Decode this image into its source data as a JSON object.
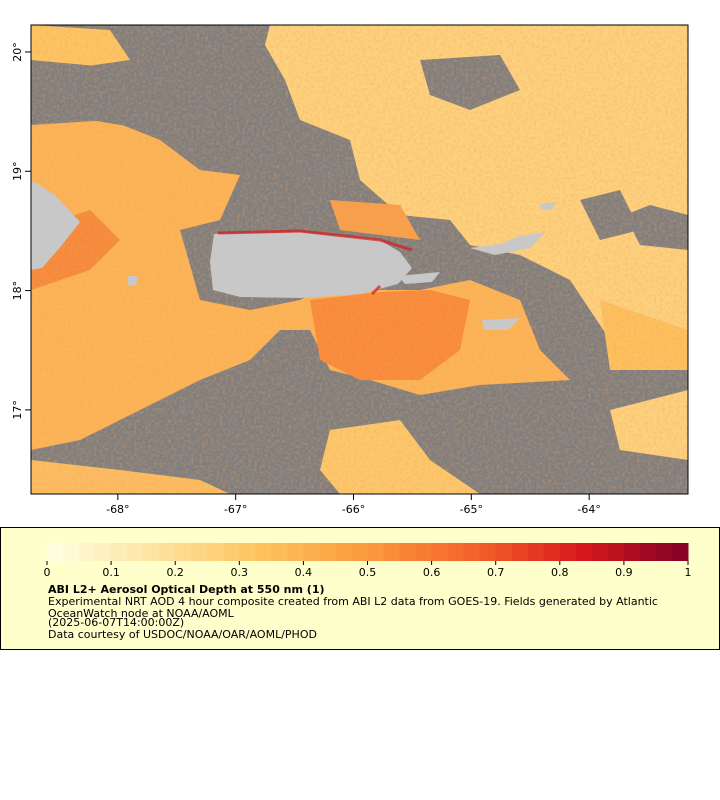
{
  "map": {
    "xlim": [
      -68.737,
      -63.161
    ],
    "ylim": [
      16.295,
      20.226
    ],
    "lon_ticks": [
      {
        "value": -68,
        "label": "-68°"
      },
      {
        "value": -67,
        "label": "-67°"
      },
      {
        "value": -66,
        "label": "-66°"
      },
      {
        "value": -65,
        "label": "-65°"
      },
      {
        "value": -64,
        "label": "-64°"
      }
    ],
    "lat_ticks": [
      {
        "value": 20,
        "label": "20°"
      },
      {
        "value": 19,
        "label": "19°"
      },
      {
        "value": 18,
        "label": "18°"
      },
      {
        "value": 17,
        "label": "17°"
      }
    ]
  },
  "legend": {
    "ticks": [
      0,
      0.1,
      0.2,
      0.3,
      0.4,
      0.5,
      0.6,
      0.7,
      0.8,
      0.9,
      1
    ],
    "colormap": [
      "#ffffe5",
      "#fee3a0",
      "#fdc35c",
      "#fb9a3c",
      "#f4622a",
      "#d7191c",
      "#800026"
    ],
    "title": "ABI L2+ Aerosol Optical Depth at 550 nm (1)",
    "lines": [
      "Experimental NRT AOD 4 hour composite created from ABI L2 data from GOES-19. Fields generated by Atlantic",
      "OceanWatch node at NOAA/AOML",
      "(2025-06-07T14:00:00Z)",
      "Data courtesy of USDOC/NOAA/OAR/AOML/PHOD"
    ]
  }
}
